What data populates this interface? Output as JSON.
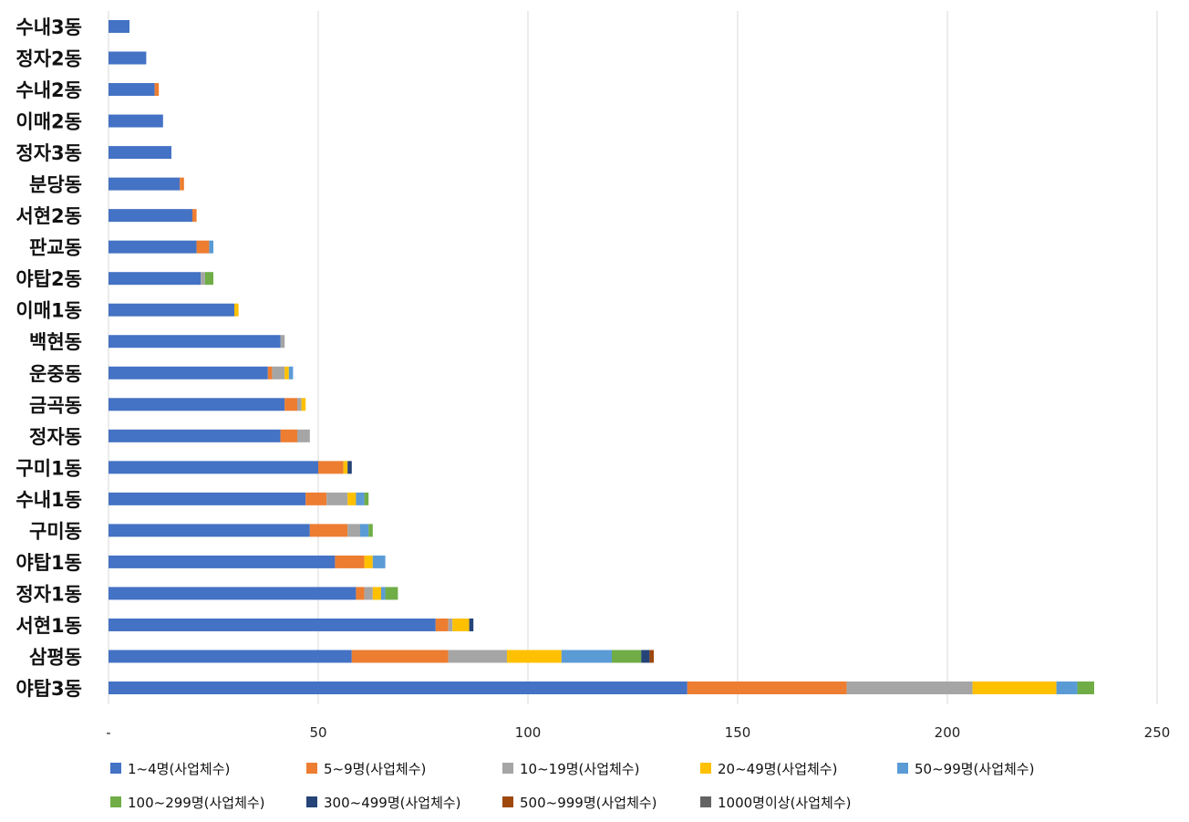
{
  "chart_data": {
    "type": "bar",
    "orientation": "horizontal",
    "stacked": true,
    "title": "",
    "xlabel": "",
    "ylabel": "",
    "xlim": [
      0,
      250
    ],
    "x_ticks": [
      "-",
      "50",
      "100",
      "150",
      "200",
      "250"
    ],
    "grid": "vertical",
    "legend_position": "bottom",
    "categories": [
      "수내3동",
      "정자2동",
      "수내2동",
      "이매2동",
      "정자3동",
      "분당동",
      "서현2동",
      "판교동",
      "야탑2동",
      "이매1동",
      "백현동",
      "운중동",
      "금곡동",
      "정자동",
      "구미1동",
      "수내1동",
      "구미동",
      "야탑1동",
      "정자1동",
      "서현1동",
      "삼평동",
      "야탑3동"
    ],
    "series": [
      {
        "name": "1~4명(사업체수)",
        "color": "#4472C4",
        "values": [
          5,
          9,
          11,
          13,
          15,
          17,
          20,
          21,
          22,
          30,
          41,
          38,
          42,
          41,
          50,
          47,
          48,
          54,
          59,
          78,
          58,
          138
        ]
      },
      {
        "name": "5~9명(사업체수)",
        "color": "#ED7D31",
        "values": [
          0,
          0,
          1,
          0,
          0,
          1,
          1,
          3,
          0,
          0,
          0,
          1,
          3,
          4,
          6,
          5,
          9,
          7,
          2,
          3,
          23,
          38
        ]
      },
      {
        "name": "10~19명(사업체수)",
        "color": "#A5A5A5",
        "values": [
          0,
          0,
          0,
          0,
          0,
          0,
          0,
          0,
          1,
          0,
          1,
          3,
          1,
          3,
          0,
          5,
          3,
          0,
          2,
          1,
          14,
          30
        ]
      },
      {
        "name": "20~49명(사업체수)",
        "color": "#FFC000",
        "values": [
          0,
          0,
          0,
          0,
          0,
          0,
          0,
          0,
          0,
          1,
          0,
          1,
          1,
          0,
          1,
          2,
          0,
          2,
          2,
          4,
          13,
          20
        ]
      },
      {
        "name": "50~99명(사업체수)",
        "color": "#5B9BD5",
        "values": [
          0,
          0,
          0,
          0,
          0,
          0,
          0,
          1,
          0,
          0,
          0,
          1,
          0,
          0,
          0,
          2,
          2,
          3,
          1,
          0,
          12,
          5
        ]
      },
      {
        "name": "100~299명(사업체수)",
        "color": "#70AD47",
        "values": [
          0,
          0,
          0,
          0,
          0,
          0,
          0,
          0,
          2,
          0,
          0,
          0,
          0,
          0,
          0,
          1,
          1,
          0,
          3,
          0,
          7,
          4
        ]
      },
      {
        "name": "300~499명(사업체수)",
        "color": "#264478",
        "values": [
          0,
          0,
          0,
          0,
          0,
          0,
          0,
          0,
          0,
          0,
          0,
          0,
          0,
          0,
          1,
          0,
          0,
          0,
          0,
          1,
          2,
          0
        ]
      },
      {
        "name": "500~999명(사업체수)",
        "color": "#9E480E",
        "values": [
          0,
          0,
          0,
          0,
          0,
          0,
          0,
          0,
          0,
          0,
          0,
          0,
          0,
          0,
          0,
          0,
          0,
          0,
          0,
          0,
          1,
          0
        ]
      },
      {
        "name": "1000명이상(사업체수)",
        "color": "#636363",
        "values": [
          0,
          0,
          0,
          0,
          0,
          0,
          0,
          0,
          0,
          0,
          0,
          0,
          0,
          0,
          0,
          0,
          0,
          0,
          0,
          0,
          0,
          0
        ]
      }
    ]
  }
}
